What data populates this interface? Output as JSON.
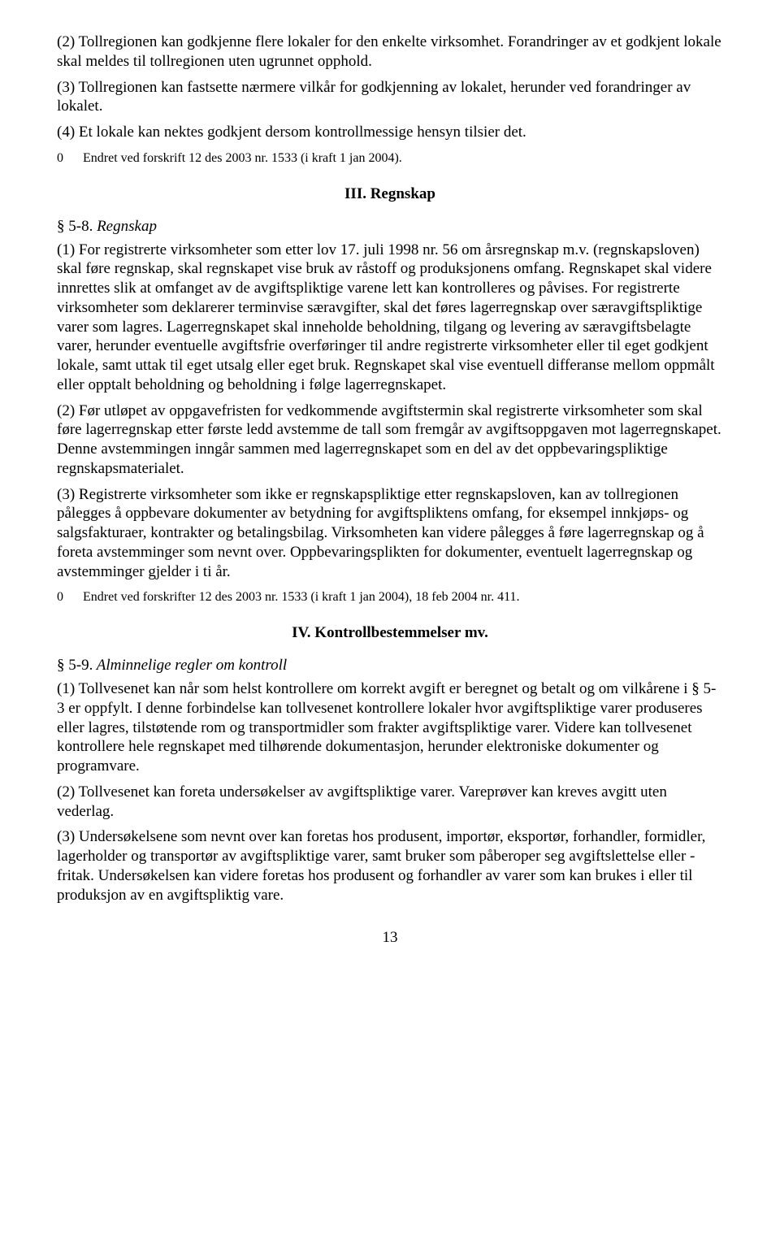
{
  "p1": "(2) Tollregionen kan godkjenne flere lokaler for den enkelte virksomhet. Forandringer av et godkjent lokale skal meldes til tollregionen uten ugrunnet opphold.",
  "p2": "(3) Tollregionen kan fastsette nærmere vilkår for godkjenning av lokalet, herunder ved forandringer av lokalet.",
  "p3": "(4) Et lokale kan nektes godkjent dersom kontrollmessige hensyn tilsier det.",
  "fn1_num": "0",
  "fn1_text": "Endret ved forskrift 12 des 2003 nr. 1533 (i kraft 1 jan 2004).",
  "heading3": "III. Regnskap",
  "sec58_num": "§ 5-8.",
  "sec58_title": " Regnskap",
  "p58_1": "(1) For registrerte virksomheter som etter lov 17. juli 1998 nr. 56 om årsregnskap m.v. (regnskapsloven) skal føre regnskap, skal regnskapet vise bruk av råstoff og produksjonens omfang. Regnskapet skal videre innrettes slik at omfanget av de avgiftspliktige varene lett kan kontrolleres og påvises. For registrerte virksomheter som deklarerer terminvise særavgifter, skal det føres lagerregnskap over særavgiftspliktige varer som lagres. Lagerregnskapet skal inneholde beholdning, tilgang og levering av særavgiftsbelagte varer, herunder eventuelle avgiftsfrie overføringer til andre registrerte virksomheter eller til eget godkjent lokale, samt uttak til eget utsalg eller eget bruk. Regnskapet skal vise eventuell differanse mellom oppmålt eller opptalt beholdning og beholdning i følge lagerregnskapet.",
  "p58_2": "(2) Før utløpet av oppgavefristen for vedkommende avgiftstermin skal registrerte virksomheter som skal føre lagerregnskap etter første ledd avstemme de tall som fremgår av avgiftsoppgaven mot lagerregnskapet. Denne avstemmingen inngår sammen med lagerregnskapet som en del av det oppbevaringspliktige regnskapsmaterialet.",
  "p58_3": "(3) Registrerte virksomheter som ikke er regnskapspliktige etter regnskapsloven, kan av tollregionen pålegges å oppbevare dokumenter av betydning for avgiftspliktens omfang, for eksempel innkjøps- og salgsfakturaer, kontrakter og betalingsbilag. Virksomheten kan videre pålegges å føre lagerregnskap og å foreta avstemminger som nevnt over. Oppbevaringsplikten for dokumenter, eventuelt lagerregnskap og avstemminger gjelder i ti år.",
  "fn2_num": "0",
  "fn2_text": "Endret ved forskrifter 12 des 2003 nr. 1533 (i kraft 1 jan 2004), 18 feb 2004 nr. 411.",
  "heading4": "IV. Kontrollbestemmelser mv.",
  "sec59_num": "§ 5-9.",
  "sec59_title": " Alminnelige regler om kontroll",
  "p59_1": "(1) Tollvesenet kan når som helst kontrollere om korrekt avgift er beregnet og betalt og om vilkårene i § 5-3 er oppfylt. I denne forbindelse kan tollvesenet kontrollere lokaler hvor avgiftspliktige varer produseres eller lagres, tilstøtende rom og transportmidler som frakter avgiftspliktige varer. Videre kan tollvesenet kontrollere hele regnskapet med tilhørende dokumentasjon, herunder elektroniske dokumenter og programvare.",
  "p59_2": "(2) Tollvesenet kan foreta undersøkelser av avgiftspliktige varer. Vareprøver kan kreves avgitt uten vederlag.",
  "p59_3": "(3) Undersøkelsene som nevnt over kan foretas hos produsent, importør, eksportør, forhandler, formidler, lagerholder og transportør av avgiftspliktige varer, samt bruker som påberoper seg avgiftslettelse eller -fritak. Undersøkelsen kan videre foretas hos produsent og forhandler av varer som kan brukes i eller til produksjon av en avgiftspliktig vare.",
  "page_num": "13"
}
